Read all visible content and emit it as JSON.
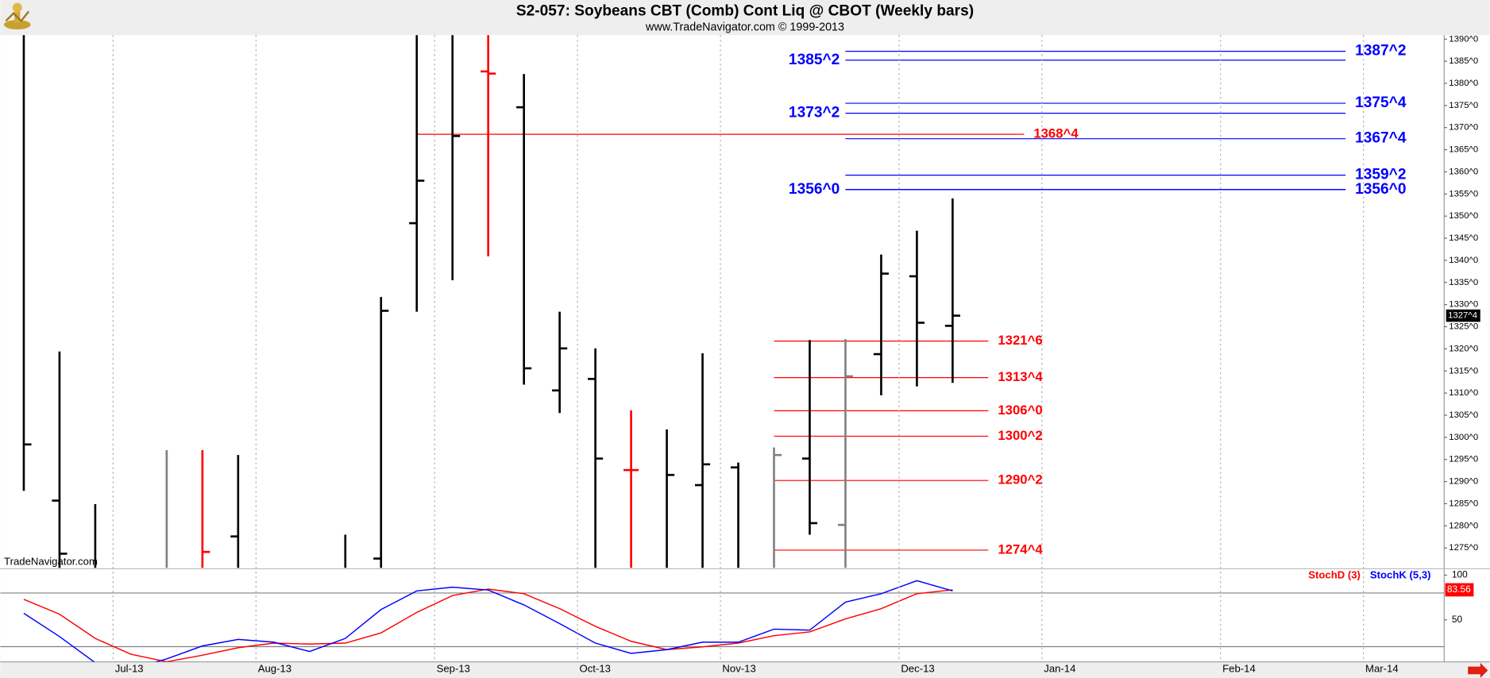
{
  "chart_data": [
    {
      "type": "ohlc",
      "title": "S2-057:  Soybeans CBT (Comb) Cont Liq @ CBOT  (Weekly bars)",
      "subtitle": "www.TradeNavigator.com © 1999-2013",
      "watermark": "TradeNavigator.com",
      "x": [
        0,
        1,
        2,
        3,
        4,
        5,
        6,
        7,
        8,
        9,
        10,
        11,
        12,
        13,
        14,
        15,
        16,
        17,
        18,
        19,
        20,
        21,
        22,
        23,
        24,
        25,
        26
      ],
      "open": [
        1395,
        1285.7,
        1268,
        1262,
        1266,
        1266,
        1277.6,
        1262,
        1262,
        1268,
        1272.6,
        1348.4,
        1392,
        1382.7,
        1374.6,
        1310.6,
        1313.2,
        1292.6,
        1268,
        1289.2,
        1293.2,
        1268,
        1295.2,
        1280.2,
        1318.8,
        1336.4,
        1325.2
      ],
      "high": [
        1400,
        1319.4,
        1284.9,
        1268,
        1297.1,
        1297.1,
        1296.0,
        1268,
        1268,
        1278.0,
        1331.7,
        1395,
        1398,
        1395,
        1382.1,
        1328.4,
        1320.1,
        1306.1,
        1301.8,
        1319.0,
        1294.3,
        1297.7,
        1322.0,
        1322.2,
        1341.3,
        1346.7,
        1354.0
      ],
      "low": [
        1287.9,
        1265,
        1262,
        1255,
        1262,
        1262,
        1262,
        1255,
        1255,
        1262,
        1262,
        1328.4,
        1335.5,
        1340.9,
        1311.9,
        1305.5,
        1262,
        1262,
        1262,
        1262,
        1262,
        1262,
        1278.0,
        1262,
        1309.5,
        1311.5,
        1312.3
      ],
      "close": [
        1298.4,
        1273.7,
        1266,
        1260,
        1264,
        1274.1,
        1268,
        1260,
        1260,
        1266,
        1328.6,
        1358.0,
        1368.1,
        1382.2,
        1315.6,
        1320.1,
        1295.2,
        1292.6,
        1291.5,
        1293.9,
        1268,
        1296.0,
        1280.6,
        1313.8,
        1337.0,
        1325.9,
        1327.5
      ],
      "colors": [
        "#000000",
        "#000000",
        "#000000",
        "#000000",
        "#808080",
        "#ff0000",
        "#000000",
        "#000000",
        "#000000",
        "#000000",
        "#000000",
        "#000000",
        "#000000",
        "#ff0000",
        "#000000",
        "#000000",
        "#000000",
        "#ff0000",
        "#000000",
        "#000000",
        "#000000",
        "#808080",
        "#000000",
        "#808080",
        "#000000",
        "#000000",
        "#000000"
      ],
      "xlim": [
        -0.66,
        39.76
      ],
      "xticks": [
        {
          "value": 2.5,
          "label": "Jul-13"
        },
        {
          "value": 6.5,
          "label": "Aug-13"
        },
        {
          "value": 11.5,
          "label": "Sep-13"
        },
        {
          "value": 15.5,
          "label": "Oct-13"
        },
        {
          "value": 19.5,
          "label": "Nov-13"
        },
        {
          "value": 24.5,
          "label": "Dec-13"
        },
        {
          "value": 28.5,
          "label": "Jan-14"
        },
        {
          "value": 33.5,
          "label": "Feb-14"
        },
        {
          "value": 37.5,
          "label": "Mar-14"
        }
      ],
      "ylim": [
        1270.5,
        1390.9
      ],
      "yticks": [
        {
          "value": 1275,
          "label": "1275^0"
        },
        {
          "value": 1280,
          "label": "1280^0"
        },
        {
          "value": 1285,
          "label": "1285^0"
        },
        {
          "value": 1290,
          "label": "1290^0"
        },
        {
          "value": 1295,
          "label": "1295^0"
        },
        {
          "value": 1300,
          "label": "1300^0"
        },
        {
          "value": 1305,
          "label": "1305^0"
        },
        {
          "value": 1310,
          "label": "1310^0"
        },
        {
          "value": 1315,
          "label": "1315^0"
        },
        {
          "value": 1320,
          "label": "1320^0"
        },
        {
          "value": 1325,
          "label": "1325^0"
        },
        {
          "value": 1330,
          "label": "1330^0"
        },
        {
          "value": 1335,
          "label": "1335^0"
        },
        {
          "value": 1340,
          "label": "1340^0"
        },
        {
          "value": 1345,
          "label": "1345^0"
        },
        {
          "value": 1350,
          "label": "1350^0"
        },
        {
          "value": 1355,
          "label": "1355^0"
        },
        {
          "value": 1360,
          "label": "1360^0"
        },
        {
          "value": 1365,
          "label": "1365^0"
        },
        {
          "value": 1370,
          "label": "1370^0"
        },
        {
          "value": 1375,
          "label": "1375^0"
        },
        {
          "value": 1380,
          "label": "1380^0"
        },
        {
          "value": 1385,
          "label": "1385^0"
        },
        {
          "value": 1390,
          "label": "1390^0"
        }
      ],
      "grid": true,
      "last_price": {
        "value": 1327.5,
        "label": "1327^4"
      },
      "levels": [
        {
          "value": 1387.25,
          "label": "1387^2",
          "color": "#0000ff",
          "x": [
            23,
            37
          ],
          "side": "right"
        },
        {
          "value": 1385.25,
          "label": "1385^2",
          "color": "#0000ff",
          "x": [
            23,
            37
          ],
          "side": "left"
        },
        {
          "value": 1375.5,
          "label": "1375^4",
          "color": "#0000ff",
          "x": [
            23,
            37
          ],
          "side": "right"
        },
        {
          "value": 1373.25,
          "label": "1373^2",
          "color": "#0000ff",
          "x": [
            23,
            37
          ],
          "side": "left"
        },
        {
          "value": 1367.5,
          "label": "1367^4",
          "color": "#0000ff",
          "x": [
            23,
            37
          ],
          "side": "right"
        },
        {
          "value": 1359.25,
          "label": "1359^2",
          "color": "#0000ff",
          "x": [
            23,
            37
          ],
          "side": "right"
        },
        {
          "value": 1356,
          "label": "1356^0",
          "color": "#0000ff",
          "x": [
            23,
            37
          ],
          "side": "left"
        },
        {
          "value": 1356,
          "label": "1356^0",
          "color": "#0000ff",
          "x": [
            23,
            37
          ],
          "side": "right"
        },
        {
          "value": 1368.5,
          "label": "1368^4",
          "color": "#ff0000",
          "x": [
            11,
            28
          ],
          "side": "right"
        },
        {
          "value": 1321.75,
          "label": "1321^6",
          "color": "#ff0000",
          "x": [
            21,
            27
          ],
          "side": "right"
        },
        {
          "value": 1313.5,
          "label": "1313^4",
          "color": "#ff0000",
          "x": [
            21,
            27
          ],
          "side": "right"
        },
        {
          "value": 1306,
          "label": "1306^0",
          "color": "#ff0000",
          "x": [
            21,
            27
          ],
          "side": "right"
        },
        {
          "value": 1300.25,
          "label": "1300^2",
          "color": "#ff0000",
          "x": [
            21,
            27
          ],
          "side": "right"
        },
        {
          "value": 1290.25,
          "label": "1290^2",
          "color": "#ff0000",
          "x": [
            21,
            27
          ],
          "side": "right"
        },
        {
          "value": 1274.5,
          "label": "1274^4",
          "color": "#ff0000",
          "x": [
            21,
            27
          ],
          "side": "right"
        }
      ]
    },
    {
      "type": "line",
      "x": [
        0,
        1,
        2,
        3,
        4,
        5,
        6,
        7,
        8,
        9,
        10,
        11,
        12,
        13,
        14,
        15,
        16,
        17,
        18,
        19,
        20,
        21,
        22,
        23,
        24,
        25,
        26
      ],
      "series": [
        {
          "name": "StochD (3)",
          "color": "#ff0000",
          "values": [
            72.9,
            56.3,
            29.2,
            11.5,
            3.1,
            10.4,
            18.8,
            24,
            22.9,
            24,
            35.4,
            58.3,
            77.1,
            84.4,
            79.2,
            62.5,
            42.7,
            26,
            16.7,
            19.8,
            24,
            32.3,
            36.5,
            51,
            62.5,
            79.2,
            83.56
          ]
        },
        {
          "name": "StochK (5,3)",
          "color": "#0000ff",
          "values": [
            57.3,
            31.3,
            2,
            -5,
            6.3,
            20.8,
            28.1,
            25,
            14.6,
            29.2,
            61.5,
            82.3,
            86.5,
            83.3,
            66.7,
            45.8,
            24,
            12.5,
            16.7,
            25,
            25,
            39.6,
            38.5,
            69.8,
            79.2,
            93.8,
            82.3
          ]
        }
      ],
      "xlim": [
        -0.66,
        39.76
      ],
      "ylim": [
        3,
        106
      ],
      "yticks": [
        50,
        100
      ],
      "hlines": [
        20,
        80
      ],
      "legend": "upper right"
    }
  ]
}
